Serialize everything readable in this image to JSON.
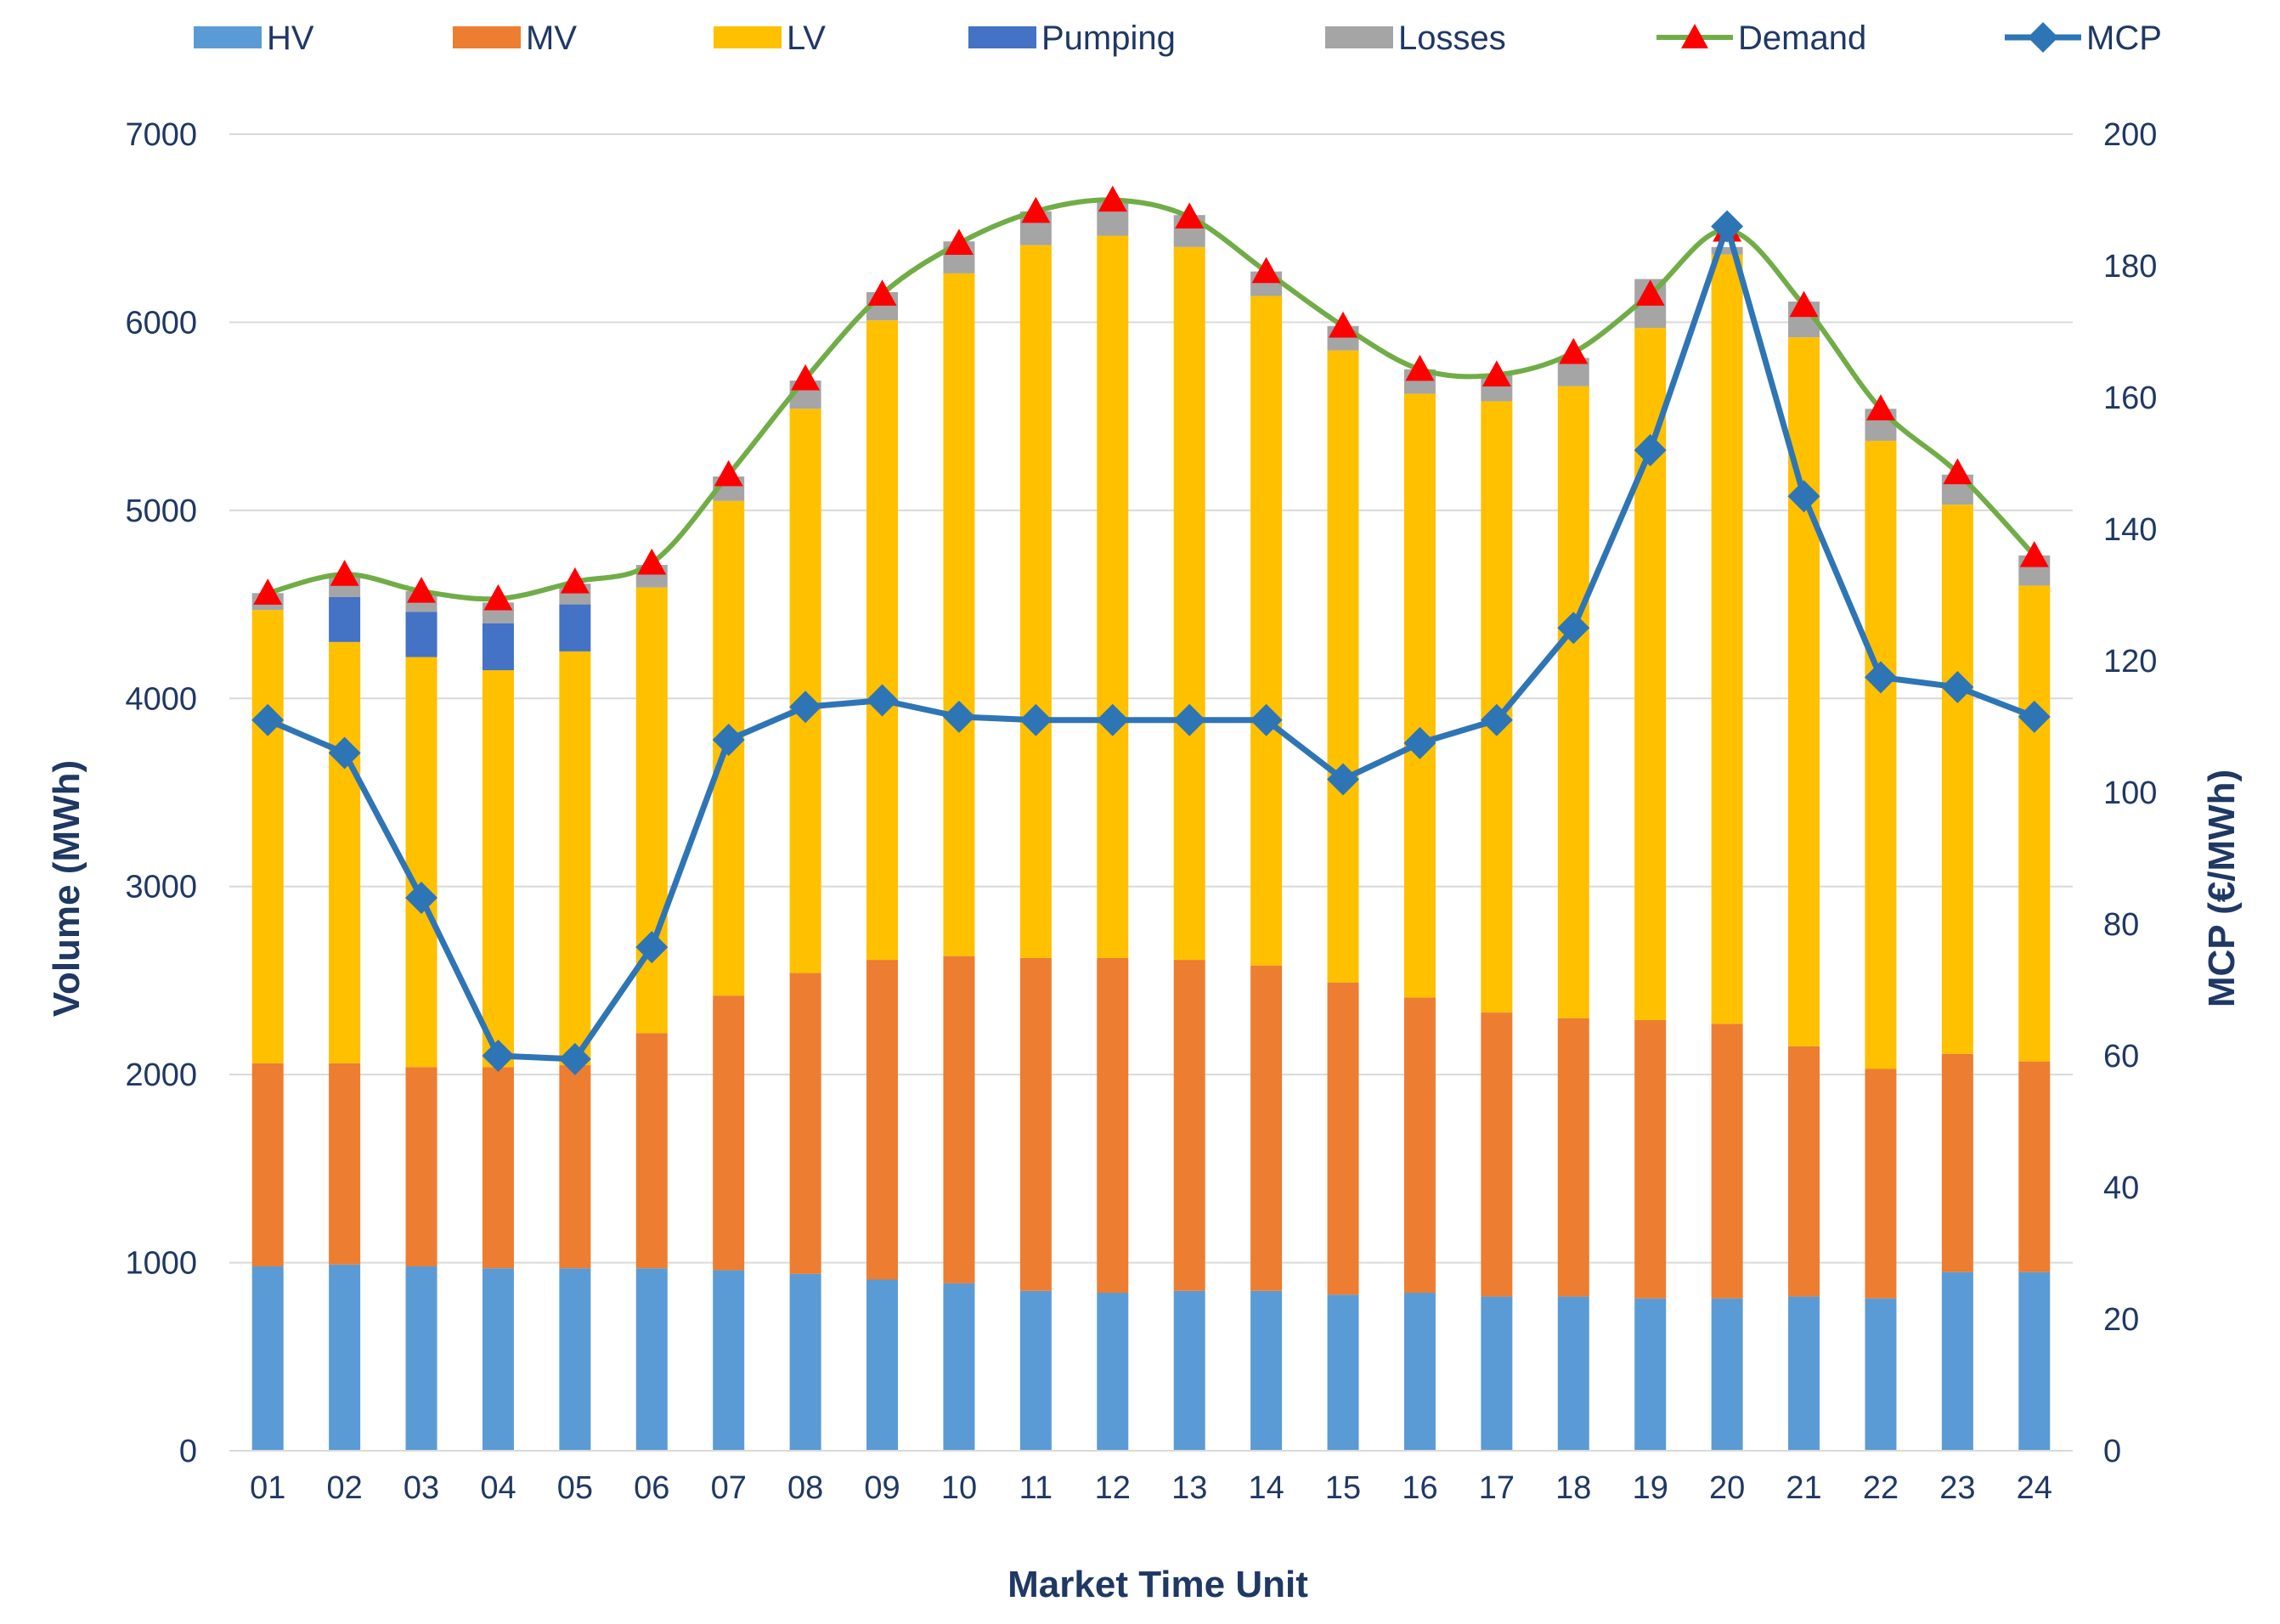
{
  "chart_data": {
    "type": "bar",
    "stacked": true,
    "categories": [
      "01",
      "02",
      "03",
      "04",
      "05",
      "06",
      "07",
      "08",
      "09",
      "10",
      "11",
      "12",
      "13",
      "14",
      "15",
      "16",
      "17",
      "18",
      "19",
      "20",
      "21",
      "22",
      "23",
      "24"
    ],
    "series": [
      {
        "name": "HV",
        "type": "bar",
        "axis": "left",
        "color": "#5b9bd5",
        "values": [
          980,
          990,
          980,
          970,
          970,
          970,
          960,
          940,
          910,
          890,
          850,
          840,
          850,
          850,
          830,
          840,
          820,
          820,
          810,
          810,
          820,
          810,
          950,
          950
        ]
      },
      {
        "name": "MV",
        "type": "bar",
        "axis": "left",
        "color": "#ed7d31",
        "values": [
          1080,
          1070,
          1060,
          1070,
          1080,
          1250,
          1460,
          1600,
          1700,
          1740,
          1770,
          1780,
          1760,
          1730,
          1660,
          1570,
          1510,
          1480,
          1480,
          1460,
          1330,
          1220,
          1160,
          1120
        ]
      },
      {
        "name": "LV",
        "type": "bar",
        "axis": "left",
        "color": "#ffc000",
        "values": [
          2410,
          2240,
          2180,
          2110,
          2200,
          2370,
          2630,
          3000,
          3400,
          3630,
          3790,
          3840,
          3790,
          3560,
          3360,
          3210,
          3250,
          3360,
          3680,
          4090,
          3770,
          3340,
          2920,
          2530
        ]
      },
      {
        "name": "Pumping",
        "type": "bar",
        "axis": "left",
        "color": "#4472c4",
        "values": [
          0,
          240,
          240,
          250,
          250,
          0,
          0,
          0,
          0,
          0,
          0,
          0,
          0,
          0,
          0,
          0,
          0,
          0,
          0,
          0,
          0,
          0,
          0,
          0
        ]
      },
      {
        "name": "Losses",
        "type": "bar",
        "axis": "left",
        "color": "#a5a5a5",
        "values": [
          90,
          110,
          110,
          110,
          110,
          120,
          130,
          150,
          150,
          170,
          180,
          190,
          170,
          130,
          130,
          130,
          140,
          150,
          260,
          40,
          190,
          170,
          160,
          160
        ]
      },
      {
        "name": "Demand",
        "type": "line",
        "axis": "left",
        "color": "#70ad47",
        "marker_color": "#ff0000",
        "marker": "triangle",
        "values": [
          4560,
          4660,
          4570,
          4530,
          4620,
          4720,
          5190,
          5700,
          6150,
          6420,
          6590,
          6650,
          6560,
          6270,
          5980,
          5750,
          5720,
          5840,
          6150,
          6490,
          6090,
          5540,
          5200,
          4760
        ]
      },
      {
        "name": "MCP",
        "type": "line",
        "axis": "right",
        "color": "#2e75b6",
        "marker": "diamond",
        "values": [
          111,
          106,
          84,
          60,
          59.5,
          76.5,
          108,
          113,
          114,
          111.5,
          111,
          111,
          111,
          111,
          102,
          107.5,
          111,
          125,
          152,
          186,
          145,
          117.5,
          116,
          111.5
        ]
      }
    ],
    "xlabel": "Market Time Unit",
    "ylabel": "Volume (MWh)",
    "y2label": "MCP (€/MWh)",
    "ylim": [
      0,
      7000
    ],
    "y2lim": [
      0,
      200
    ],
    "yticks": [
      "0",
      "1000",
      "2000",
      "3000",
      "4000",
      "5000",
      "6000",
      "7000"
    ],
    "y2ticks": [
      "0",
      "20",
      "40",
      "60",
      "80",
      "100",
      "120",
      "140",
      "160",
      "180",
      "200"
    ],
    "grid": true,
    "legend_position": "top"
  }
}
